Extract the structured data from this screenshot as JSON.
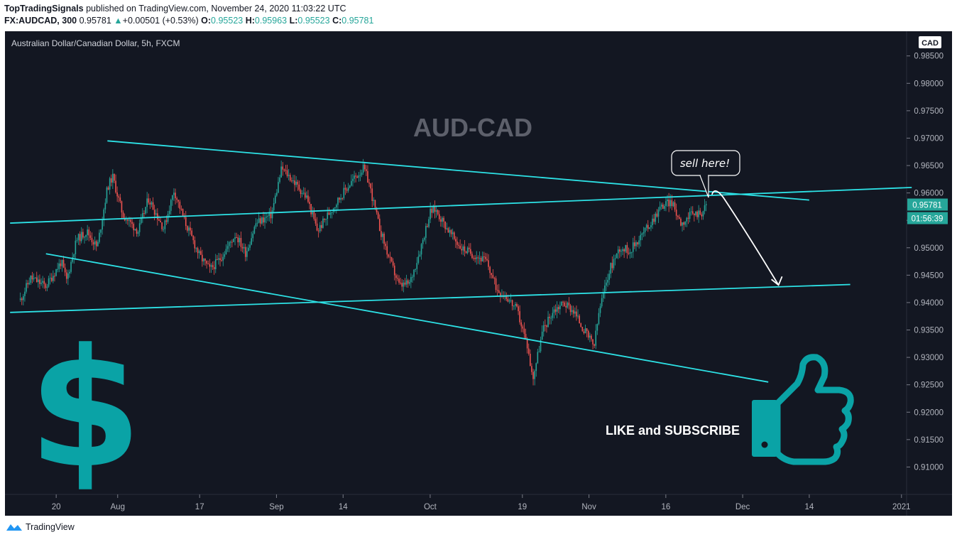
{
  "header": {
    "publisher": "TopTradingSignals",
    "published_text": " published on TradingView.com, November 24, 2020 11:03:22 UTC",
    "symbol": "FX:AUDCAD, 300",
    "last": "0.95781",
    "change_arrow": "▲",
    "change": "+0.00501 (+0.53%)",
    "o_label": "O:",
    "o_value": "0.95523",
    "h_label": "H:",
    "h_value": "0.95963",
    "l_label": "L:",
    "l_value": "0.95523",
    "c_label": "C:",
    "c_value": "0.95781"
  },
  "chart_data": {
    "type": "candlestick",
    "instrument": "Australian Dollar/Canadian Dollar, 5h, FXCM",
    "title": "AUD-CAD",
    "currency": "CAD",
    "price_axis": {
      "ticks": [
        "0.98500",
        "0.98000",
        "0.97500",
        "0.97000",
        "0.96500",
        "0.96000",
        "0.95500",
        "0.95000",
        "0.94500",
        "0.94000",
        "0.93500",
        "0.93000",
        "0.92500",
        "0.92000",
        "0.91500",
        "0.91000"
      ],
      "range": [
        0.905,
        0.9895
      ]
    },
    "time_axis": {
      "ticks": [
        "20",
        "Aug",
        "17",
        "Sep",
        "14",
        "Oct",
        "19",
        "Nov",
        "16",
        "Dec",
        "14",
        "2021"
      ]
    },
    "price_path": [
      {
        "date": "2020-07-13",
        "price": 0.9405
      },
      {
        "date": "2020-07-15",
        "price": 0.9445
      },
      {
        "date": "2020-07-18",
        "price": 0.943
      },
      {
        "date": "2020-07-21",
        "price": 0.9475
      },
      {
        "date": "2020-07-22",
        "price": 0.944
      },
      {
        "date": "2020-07-24",
        "price": 0.9515
      },
      {
        "date": "2020-07-26",
        "price": 0.953
      },
      {
        "date": "2020-07-28",
        "price": 0.95
      },
      {
        "date": "2020-07-30",
        "price": 0.961
      },
      {
        "date": "2020-07-31",
        "price": 0.963
      },
      {
        "date": "2020-08-02",
        "price": 0.956
      },
      {
        "date": "2020-08-05",
        "price": 0.953
      },
      {
        "date": "2020-08-07",
        "price": 0.959
      },
      {
        "date": "2020-08-10",
        "price": 0.9535
      },
      {
        "date": "2020-08-12",
        "price": 0.9605
      },
      {
        "date": "2020-08-14",
        "price": 0.955
      },
      {
        "date": "2020-08-17",
        "price": 0.9485
      },
      {
        "date": "2020-08-19",
        "price": 0.946
      },
      {
        "date": "2020-08-21",
        "price": 0.948
      },
      {
        "date": "2020-08-24",
        "price": 0.9525
      },
      {
        "date": "2020-08-26",
        "price": 0.949
      },
      {
        "date": "2020-08-28",
        "price": 0.9545
      },
      {
        "date": "2020-08-31",
        "price": 0.956
      },
      {
        "date": "2020-09-02",
        "price": 0.9645
      },
      {
        "date": "2020-09-04",
        "price": 0.9625
      },
      {
        "date": "2020-09-07",
        "price": 0.959
      },
      {
        "date": "2020-09-09",
        "price": 0.953
      },
      {
        "date": "2020-09-11",
        "price": 0.956
      },
      {
        "date": "2020-09-14",
        "price": 0.96
      },
      {
        "date": "2020-09-16",
        "price": 0.9625
      },
      {
        "date": "2020-09-18",
        "price": 0.9645
      },
      {
        "date": "2020-09-19",
        "price": 0.962
      },
      {
        "date": "2020-09-21",
        "price": 0.954
      },
      {
        "date": "2020-09-23",
        "price": 0.948
      },
      {
        "date": "2020-09-25",
        "price": 0.943
      },
      {
        "date": "2020-09-27",
        "price": 0.9435
      },
      {
        "date": "2020-09-29",
        "price": 0.9495
      },
      {
        "date": "2020-10-01",
        "price": 0.9565
      },
      {
        "date": "2020-10-02",
        "price": 0.957
      },
      {
        "date": "2020-10-05",
        "price": 0.9525
      },
      {
        "date": "2020-10-07",
        "price": 0.95
      },
      {
        "date": "2020-10-09",
        "price": 0.949
      },
      {
        "date": "2020-10-12",
        "price": 0.9475
      },
      {
        "date": "2020-10-14",
        "price": 0.9425
      },
      {
        "date": "2020-10-16",
        "price": 0.941
      },
      {
        "date": "2020-10-18",
        "price": 0.9385
      },
      {
        "date": "2020-10-20",
        "price": 0.932
      },
      {
        "date": "2020-10-21",
        "price": 0.926
      },
      {
        "date": "2020-10-23",
        "price": 0.935
      },
      {
        "date": "2020-10-25",
        "price": 0.9385
      },
      {
        "date": "2020-10-27",
        "price": 0.94
      },
      {
        "date": "2020-10-29",
        "price": 0.9385
      },
      {
        "date": "2020-10-31",
        "price": 0.935
      },
      {
        "date": "2020-11-02",
        "price": 0.932
      },
      {
        "date": "2020-11-03",
        "price": 0.9385
      },
      {
        "date": "2020-11-05",
        "price": 0.946
      },
      {
        "date": "2020-11-07",
        "price": 0.95
      },
      {
        "date": "2020-11-09",
        "price": 0.9495
      },
      {
        "date": "2020-11-11",
        "price": 0.952
      },
      {
        "date": "2020-11-13",
        "price": 0.9545
      },
      {
        "date": "2020-11-15",
        "price": 0.9575
      },
      {
        "date": "2020-11-17",
        "price": 0.9585
      },
      {
        "date": "2020-11-19",
        "price": 0.9545
      },
      {
        "date": "2020-11-21",
        "price": 0.956
      },
      {
        "date": "2020-11-23",
        "price": 0.9565
      },
      {
        "date": "2020-11-24",
        "price": 0.95781
      }
    ],
    "price_label": "0.95781",
    "countdown": "01:56:39",
    "annotations": {
      "callout": "sell here!",
      "cta": "LIKE and SUBSCRIBE",
      "dollar": "$"
    },
    "trendlines": [
      {
        "from": {
          "date": "2020-07-30",
          "price": 0.9695
        },
        "to": {
          "date": "2020-12-14",
          "price": 0.9587
        }
      },
      {
        "from": {
          "date": "2020-07-11",
          "price": 0.9545
        },
        "to": {
          "date": "2021-01-03",
          "price": 0.961
        }
      },
      {
        "from": {
          "date": "2020-07-18",
          "price": 0.9489
        },
        "to": {
          "date": "2020-12-06",
          "price": 0.9255
        }
      },
      {
        "from": {
          "date": "2020-07-11",
          "price": 0.9382
        },
        "to": {
          "date": "2020-12-22",
          "price": 0.9433
        }
      }
    ],
    "arrow": {
      "from": {
        "date": "2020-11-25",
        "price": 0.9597
      },
      "to": {
        "date": "2020-12-08",
        "price": 0.9432
      }
    },
    "colors": {
      "background": "#131722",
      "up": "#26a69a",
      "down": "#ef5350",
      "trendline": "#2de2e6",
      "title": "#5d606b",
      "accent": "#0aa3a6"
    }
  },
  "footer": {
    "logo_label": "TradingView"
  }
}
